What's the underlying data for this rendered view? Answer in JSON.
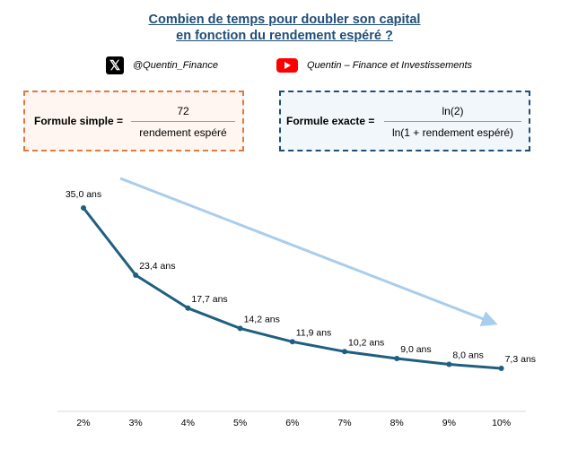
{
  "title_line1": "Combien de temps pour doubler son capital",
  "title_line2": "en fonction du rendement espéré ?",
  "social": {
    "x_icon": "x-logo-icon",
    "x_handle": "@Quentin_Finance",
    "youtube_icon": "youtube-logo-icon",
    "youtube_name": "Quentin – Finance et Investissements"
  },
  "formula_simple": {
    "label": "Formule simple =",
    "numerator": "72",
    "denominator": "rendement espéré",
    "border_color": "#e27a3f"
  },
  "formula_exact": {
    "label": "Formule exacte =",
    "numerator": "ln(2)",
    "denominator": "ln(1 + rendement espéré)",
    "border_color": "#1f4e79"
  },
  "chart_data": {
    "type": "line",
    "categories": [
      "2%",
      "3%",
      "4%",
      "5%",
      "6%",
      "7%",
      "8%",
      "9%",
      "10%"
    ],
    "values": [
      35.0,
      23.4,
      17.7,
      14.2,
      11.9,
      10.2,
      9.0,
      8.0,
      7.3
    ],
    "data_labels": [
      "35,0 ans",
      "23,4 ans",
      "17,7 ans",
      "14,2 ans",
      "11,9 ans",
      "10,2 ans",
      "9,0 ans",
      "8,0 ans",
      "7,3 ans"
    ],
    "line_color": "#1f5f7f",
    "trend_arrow_color": "#a9cdec",
    "grid": false,
    "ylim": [
      0,
      40
    ]
  }
}
